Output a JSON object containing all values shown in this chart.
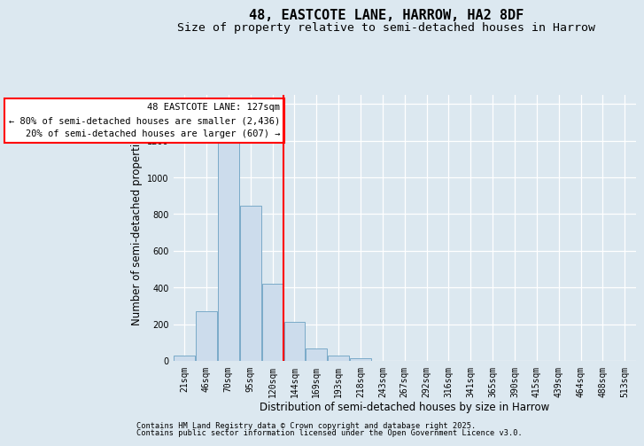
{
  "title": "48, EASTCOTE LANE, HARROW, HA2 8DF",
  "subtitle": "Size of property relative to semi-detached houses in Harrow",
  "xlabel": "Distribution of semi-detached houses by size in Harrow",
  "ylabel": "Number of semi-detached properties",
  "footnote1": "Contains HM Land Registry data © Crown copyright and database right 2025.",
  "footnote2": "Contains public sector information licensed under the Open Government Licence v3.0.",
  "bin_labels": [
    "21sqm",
    "46sqm",
    "70sqm",
    "95sqm",
    "120sqm",
    "144sqm",
    "169sqm",
    "193sqm",
    "218sqm",
    "243sqm",
    "267sqm",
    "292sqm",
    "316sqm",
    "341sqm",
    "365sqm",
    "390sqm",
    "415sqm",
    "439sqm",
    "464sqm",
    "488sqm",
    "513sqm"
  ],
  "bar_values": [
    30,
    270,
    1200,
    845,
    420,
    215,
    70,
    28,
    13,
    0,
    0,
    0,
    0,
    0,
    0,
    0,
    0,
    0,
    0,
    0,
    0
  ],
  "bar_color": "#ccdcec",
  "bar_edge_color": "#7aaac8",
  "background_color": "#dce8f0",
  "grid_color": "#ffffff",
  "redline_bin_index": 4,
  "annotation_line1": "48 EASTCOTE LANE: 127sqm",
  "annotation_line2": "← 80% of semi-detached houses are smaller (2,436)",
  "annotation_line3": "20% of semi-detached houses are larger (607) →",
  "ylim": [
    0,
    1450
  ],
  "yticks": [
    0,
    200,
    400,
    600,
    800,
    1000,
    1200,
    1400
  ],
  "title_fontsize": 11,
  "subtitle_fontsize": 9.5,
  "axis_label_fontsize": 8.5,
  "tick_fontsize": 7,
  "annotation_fontsize": 7.5,
  "footnote_fontsize": 6.2
}
